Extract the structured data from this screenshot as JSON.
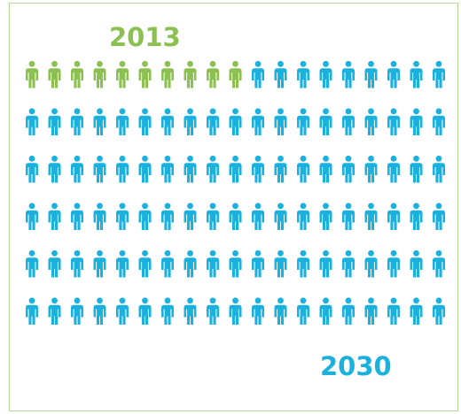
{
  "labels": {
    "start_year": "2013",
    "end_year": "2030"
  },
  "population": {
    "total_figures": 120,
    "highlighted_figures": 10,
    "columns": 20,
    "rows": 6
  },
  "colors": {
    "highlight": "#8cc152",
    "base": "#1ab1df",
    "border": "#b7d79a"
  },
  "icons": {
    "figure": "person-icon"
  }
}
